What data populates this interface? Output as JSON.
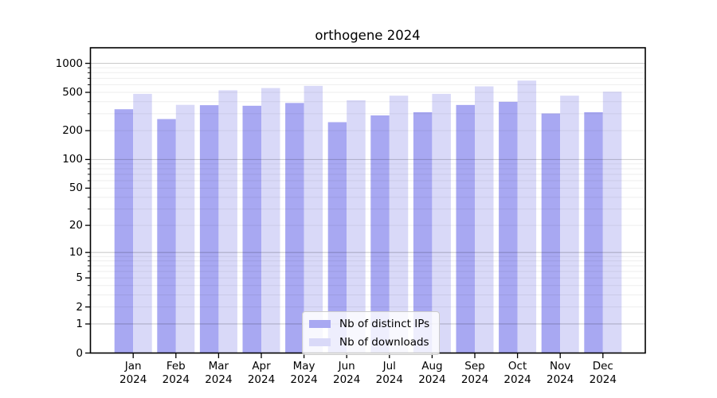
{
  "title": "orthogene 2024",
  "colors": {
    "distinct_ips": "#a8a8f2",
    "downloads": "#d9d9f8",
    "grid_decade": "rgba(0,0,0,0.20)",
    "grid_minor": "rgba(0,0,0,0.065)",
    "axis": "#000000",
    "legend_border": "#cccccc",
    "legend_bg": "rgba(255,255,255,0.8)"
  },
  "legend": {
    "items": [
      {
        "label": "Nb of distinct IPs",
        "color_key": "distinct_ips"
      },
      {
        "label": "Nb of downloads",
        "color_key": "downloads"
      }
    ],
    "position": "lower center"
  },
  "x_axis": {
    "months": [
      "Jan",
      "Feb",
      "Mar",
      "Apr",
      "May",
      "Jun",
      "Jul",
      "Aug",
      "Sep",
      "Oct",
      "Nov",
      "Dec"
    ],
    "year": "2024"
  },
  "y_axis": {
    "tick_labels": [
      0,
      1,
      2,
      5,
      10,
      20,
      50,
      100,
      200,
      500,
      1000
    ],
    "minor_ticks": [
      3,
      4,
      6,
      7,
      8,
      9,
      30,
      40,
      60,
      70,
      80,
      90,
      300,
      400,
      600,
      700,
      800,
      900
    ],
    "decade_gridlines": [
      1,
      10,
      100,
      1000
    ],
    "scale": "log10(value+1)",
    "top_value": 1450
  },
  "chart_data": {
    "type": "bar",
    "title": "orthogene 2024",
    "categories": [
      "Jan 2024",
      "Feb 2024",
      "Mar 2024",
      "Apr 2024",
      "May 2024",
      "Jun 2024",
      "Jul 2024",
      "Aug 2024",
      "Sep 2024",
      "Oct 2024",
      "Nov 2024",
      "Dec 2024"
    ],
    "series": [
      {
        "name": "Nb of distinct IPs",
        "values": [
          334,
          264,
          368,
          363,
          388,
          245,
          288,
          311,
          370,
          399,
          302,
          311
        ]
      },
      {
        "name": "Nb of downloads",
        "values": [
          482,
          371,
          525,
          554,
          584,
          414,
          462,
          482,
          577,
          662,
          462,
          508
        ]
      }
    ],
    "xlabel": "",
    "ylabel": "",
    "yscale": "log1p",
    "ylim": [
      0,
      1450
    ],
    "y_ticks": [
      0,
      1,
      2,
      5,
      10,
      20,
      50,
      100,
      200,
      500,
      1000
    ],
    "legend_position": "lower center",
    "grid": true,
    "grid_above_bars": true
  }
}
